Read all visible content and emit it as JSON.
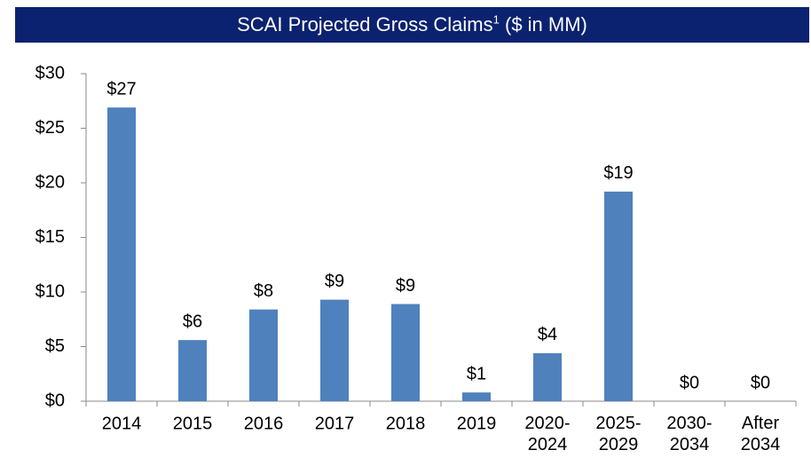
{
  "chart_data": {
    "type": "bar",
    "title": "SCAI Projected Gross Claims",
    "title_footnote": "1",
    "unit_label": "($ in MM)",
    "categories": [
      "2014",
      "2015",
      "2016",
      "2017",
      "2018",
      "2019",
      "2020-\n2024",
      "2025-\n2029",
      "2030-\n2034",
      "After\n2034"
    ],
    "values": [
      26.9,
      5.6,
      8.4,
      9.3,
      8.9,
      0.8,
      4.4,
      19.2,
      0,
      0
    ],
    "value_labels": [
      "$27",
      "$6",
      "$8",
      "$9",
      "$9",
      "$1",
      "$4",
      "$19",
      "$0",
      "$0"
    ],
    "color": "#4f81bd",
    "ylim": [
      0,
      30
    ],
    "yticks": [
      {
        "value": 0,
        "label": "$0"
      },
      {
        "value": 5,
        "label": "$5"
      },
      {
        "value": 10,
        "label": "$10"
      },
      {
        "value": 15,
        "label": "$15"
      },
      {
        "value": 20,
        "label": "$20"
      },
      {
        "value": 25,
        "label": "$25"
      },
      {
        "value": 30,
        "label": "$30"
      }
    ],
    "grid": false
  }
}
